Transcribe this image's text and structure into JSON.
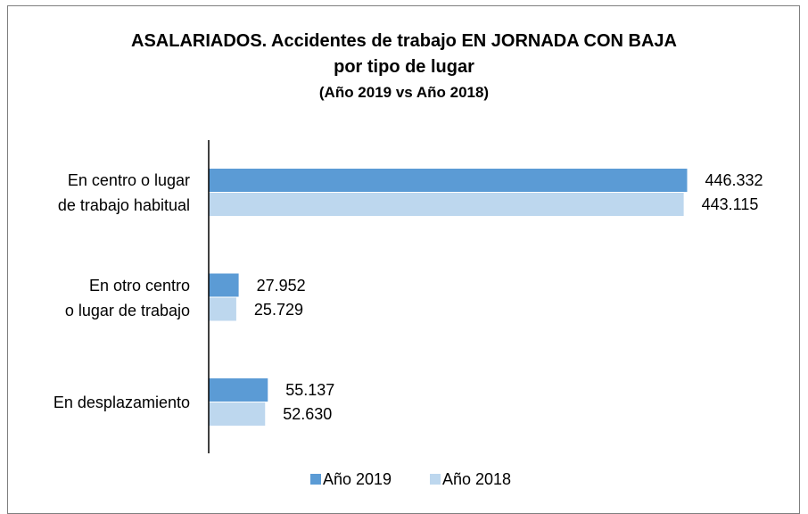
{
  "chart_data": {
    "type": "bar",
    "orientation": "horizontal",
    "title": "ASALARIADOS. Accidentes de trabajo EN JORNADA CON BAJA\npor tipo de lugar",
    "subtitle": "(Año 2019 vs Año 2018)",
    "categories": [
      "En centro o lugar\nde trabajo habitual",
      "En otro centro\no lugar de trabajo",
      "En desplazamiento"
    ],
    "series": [
      {
        "name": "Año 2019",
        "color": "#5b9bd5",
        "values": [
          446332,
          27952,
          55137
        ],
        "value_labels": [
          "446.332",
          "27.952",
          "55.137"
        ]
      },
      {
        "name": "Año 2018",
        "color": "#bdd7ee",
        "values": [
          443115,
          25729,
          52630
        ],
        "value_labels": [
          "443.115",
          "25.729",
          "52.630"
        ]
      }
    ],
    "xlim": [
      0,
      500000
    ],
    "legend": "bottom"
  }
}
